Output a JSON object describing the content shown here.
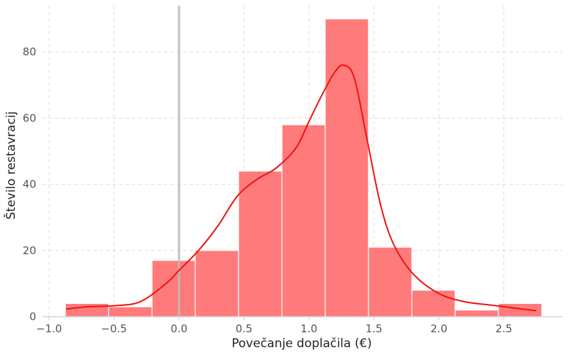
{
  "chart_data": {
    "type": "bar",
    "subtype": "histogram-with-kde",
    "title": "",
    "xlabel": "Povečanje doplačila (€)",
    "ylabel": "Število restavracij",
    "xlim": [
      -1.05,
      2.95
    ],
    "ylim": [
      0,
      94
    ],
    "x_ticks": [
      -1.0,
      -0.5,
      0.0,
      0.5,
      1.0,
      1.5,
      2.0,
      2.5
    ],
    "x_tick_labels": [
      "−1.0",
      "−0.5",
      "0.0",
      "0.5",
      "1.0",
      "1.5",
      "2.0",
      "2.5"
    ],
    "y_ticks": [
      0,
      20,
      40,
      60,
      80
    ],
    "y_tick_labels": [
      "0",
      "20",
      "40",
      "60",
      "80"
    ],
    "grid": true,
    "bin_edges": [
      -0.875,
      -0.542,
      -0.208,
      0.125,
      0.458,
      0.792,
      1.125,
      1.458,
      1.792,
      2.125,
      2.458,
      2.792
    ],
    "values": [
      4,
      3,
      17,
      20,
      44,
      58,
      90,
      21,
      8,
      2,
      4
    ],
    "kde": {
      "x": [
        -0.87,
        -0.7,
        -0.5,
        -0.3,
        -0.1,
        0.0,
        0.15,
        0.3,
        0.45,
        0.6,
        0.75,
        0.9,
        1.0,
        1.1,
        1.2,
        1.27,
        1.35,
        1.45,
        1.55,
        1.65,
        1.8,
        2.0,
        2.2,
        2.4,
        2.6,
        2.75
      ],
      "y": [
        2.3,
        3.0,
        3.3,
        4.5,
        10.0,
        14.0,
        20.0,
        27.5,
        36.5,
        41.5,
        45.0,
        51.0,
        59.0,
        67.0,
        74.0,
        76.0,
        72.0,
        53.0,
        34.0,
        22.0,
        13.0,
        7.0,
        4.5,
        3.5,
        2.5,
        1.8
      ]
    },
    "reference_line_x": 0.0,
    "colors": {
      "bar": "#ff7b7b",
      "kde": "#ee1111",
      "reference_line": "#bbbbbb",
      "axis": "#cccccc"
    }
  }
}
